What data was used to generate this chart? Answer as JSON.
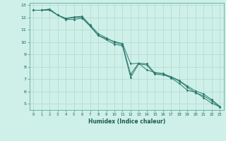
{
  "xlabel": "Humidex (Indice chaleur)",
  "xlim": [
    -0.5,
    23.5
  ],
  "ylim": [
    4.5,
    13.2
  ],
  "yticks": [
    5,
    6,
    7,
    8,
    9,
    10,
    11,
    12,
    13
  ],
  "xticks": [
    0,
    1,
    2,
    3,
    4,
    5,
    6,
    7,
    8,
    9,
    10,
    11,
    12,
    13,
    14,
    15,
    16,
    17,
    18,
    19,
    20,
    21,
    22,
    23
  ],
  "line_color": "#2d7a6e",
  "bg_color": "#cef0e8",
  "grid_color": "#b0d8ce",
  "series1_x": [
    0,
    1,
    2,
    3,
    4,
    5,
    6,
    7,
    8,
    9,
    10,
    11,
    12,
    13,
    14,
    15,
    16,
    17,
    18,
    19,
    20,
    21,
    22,
    23
  ],
  "series1_y": [
    12.6,
    12.6,
    12.7,
    12.2,
    11.9,
    12.0,
    12.05,
    11.35,
    10.55,
    10.3,
    10.05,
    9.9,
    8.25,
    8.3,
    7.75,
    7.55,
    7.45,
    7.1,
    6.65,
    6.1,
    5.95,
    5.5,
    5.05,
    4.75
  ],
  "series2_x": [
    0,
    1,
    2,
    3,
    4,
    5,
    6,
    7,
    8,
    9,
    10,
    11,
    12,
    13,
    14,
    15,
    16,
    17,
    18,
    19,
    20,
    21,
    22,
    23
  ],
  "series2_y": [
    12.6,
    12.6,
    12.65,
    12.2,
    11.95,
    12.05,
    12.1,
    11.4,
    10.7,
    10.35,
    10.0,
    9.8,
    7.4,
    8.3,
    8.25,
    7.5,
    7.45,
    7.2,
    6.9,
    6.45,
    6.05,
    5.8,
    5.35,
    4.8
  ],
  "series3_x": [
    0,
    1,
    2,
    3,
    4,
    5,
    6,
    7,
    8,
    9,
    10,
    11,
    12,
    13,
    14,
    15,
    16,
    17,
    18,
    19,
    20,
    21,
    22,
    23
  ],
  "series3_y": [
    12.6,
    12.6,
    12.6,
    12.2,
    11.85,
    11.85,
    11.95,
    11.3,
    10.55,
    10.2,
    9.85,
    9.7,
    7.15,
    8.25,
    8.15,
    7.4,
    7.35,
    7.15,
    6.85,
    6.35,
    5.9,
    5.65,
    5.25,
    4.75
  ]
}
